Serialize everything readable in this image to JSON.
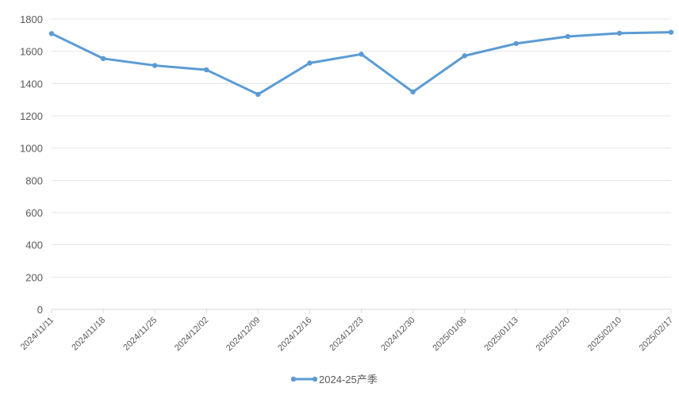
{
  "chart_data": {
    "type": "line",
    "title": "",
    "xlabel": "",
    "ylabel": "",
    "categories": [
      "2024/11/11",
      "2024/11/18",
      "2024/11/25",
      "2024/12/02",
      "2024/12/09",
      "2024/12/16",
      "2024/12/23",
      "2024/12/30",
      "2025/01/06",
      "2025/01/13",
      "2025/01/20",
      "2025/02/10",
      "2025/02/17"
    ],
    "series": [
      {
        "name": "2024-25产季",
        "color": "#5b9bd5",
        "values": [
          1710,
          1555,
          1512,
          1485,
          1333,
          1527,
          1582,
          1348,
          1572,
          1648,
          1692,
          1712,
          1718
        ]
      }
    ],
    "ylim": [
      0,
      1800
    ],
    "yticks": [
      0,
      200,
      400,
      600,
      800,
      1000,
      1200,
      1400,
      1600,
      1800
    ],
    "grid": true,
    "legend_position": "bottom"
  }
}
